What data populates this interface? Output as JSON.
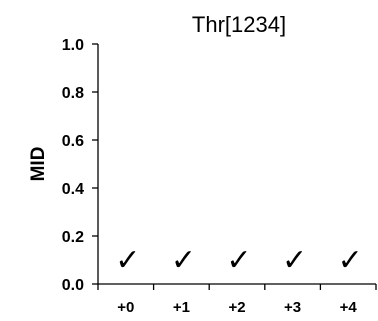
{
  "chart_data": {
    "type": "bar",
    "title": "Thr[1234]",
    "xlabel": "",
    "ylabel": "MID",
    "categories": [
      "+0",
      "+1",
      "+2",
      "+3",
      "+4"
    ],
    "ylim": [
      0,
      1.0
    ],
    "yticks": [
      "0.0",
      "0.2",
      "0.4",
      "0.6",
      "0.8",
      "1.0"
    ],
    "grid": false,
    "markers": [
      {
        "category": "+0",
        "symbol": "✓",
        "y": 0.1
      },
      {
        "category": "+1",
        "symbol": "✓",
        "y": 0.1
      },
      {
        "category": "+2",
        "symbol": "✓",
        "y": 0.1
      },
      {
        "category": "+3",
        "symbol": "✓",
        "y": 0.1
      },
      {
        "category": "+4",
        "symbol": "✓",
        "y": 0.1
      }
    ]
  }
}
